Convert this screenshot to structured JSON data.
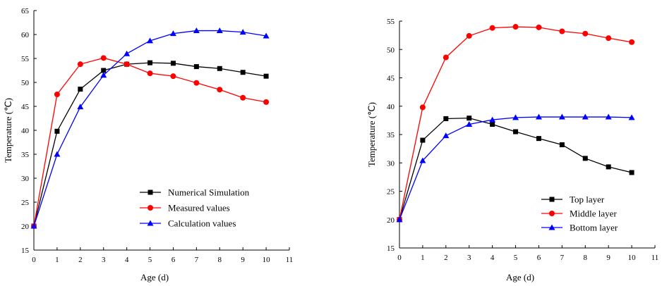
{
  "chart_data": [
    {
      "type": "line",
      "title": "",
      "xlabel": "Age (d)",
      "ylabel": "Temperature (℃)",
      "xlim": [
        0,
        11
      ],
      "ylim": [
        15,
        65
      ],
      "xticks": [
        0,
        1,
        2,
        3,
        4,
        5,
        6,
        7,
        8,
        9,
        10,
        11
      ],
      "yticks": [
        15,
        20,
        25,
        30,
        35,
        40,
        45,
        50,
        55,
        60,
        65
      ],
      "legend_position": "bottom-right",
      "grid": false,
      "x": [
        0,
        1,
        2,
        3,
        4,
        5,
        6,
        7,
        8,
        9,
        10
      ],
      "series": [
        {
          "name": "Numerical Simulation",
          "color": "#000000",
          "marker": "square",
          "values": [
            20,
            39.8,
            48.6,
            52.5,
            53.8,
            54.1,
            54.0,
            53.3,
            52.9,
            52.1,
            51.3
          ]
        },
        {
          "name": "Measured values",
          "color": "#ff0000",
          "marker": "circle",
          "values": [
            20,
            47.5,
            53.8,
            55.1,
            53.8,
            51.9,
            51.3,
            49.9,
            48.5,
            46.8,
            45.9
          ]
        },
        {
          "name": "Calculation values",
          "color": "#0000ff",
          "marker": "triangle",
          "values": [
            20,
            35.0,
            44.9,
            51.5,
            56.0,
            58.7,
            60.2,
            60.8,
            60.8,
            60.5,
            59.7
          ]
        }
      ]
    },
    {
      "type": "line",
      "title": "",
      "xlabel": "Age (d)",
      "ylabel": "Temperature (℃)",
      "xlim": [
        0,
        11
      ],
      "ylim": [
        15,
        55
      ],
      "xticks": [
        0,
        1,
        2,
        3,
        4,
        5,
        6,
        7,
        8,
        9,
        10,
        11
      ],
      "yticks": [
        15,
        20,
        25,
        30,
        35,
        40,
        45,
        50,
        55
      ],
      "legend_position": "bottom-right",
      "grid": false,
      "x": [
        0,
        1,
        2,
        3,
        4,
        5,
        6,
        7,
        8,
        9,
        10
      ],
      "series": [
        {
          "name": "Top layer",
          "color": "#000000",
          "marker": "square",
          "values": [
            20,
            34.0,
            37.8,
            37.9,
            36.8,
            35.5,
            34.3,
            33.2,
            30.8,
            29.3,
            28.3
          ]
        },
        {
          "name": "Middle layer",
          "color": "#ff0000",
          "marker": "circle",
          "values": [
            20,
            39.8,
            48.6,
            52.4,
            53.8,
            54.0,
            53.9,
            53.2,
            52.8,
            52.0,
            51.3
          ]
        },
        {
          "name": "Bottom layer",
          "color": "#0000ff",
          "marker": "triangle",
          "values": [
            20,
            30.4,
            34.8,
            36.8,
            37.6,
            38.0,
            38.1,
            38.1,
            38.1,
            38.1,
            38.0
          ]
        }
      ]
    }
  ]
}
